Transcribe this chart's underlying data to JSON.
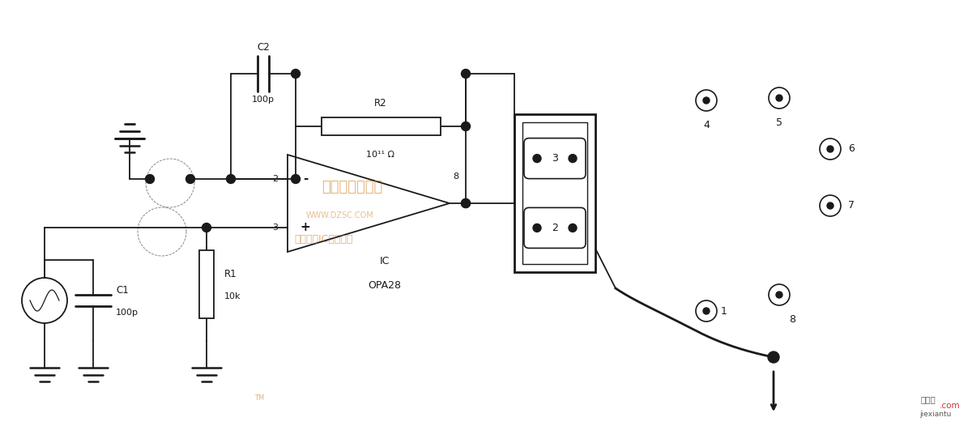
{
  "bg_color": "#ffffff",
  "line_color": "#1a1a1a",
  "line_width": 1.3,
  "fig_width": 12.0,
  "fig_height": 5.26,
  "components": {
    "C2_label": "C2",
    "C2_val": "100p",
    "C1_label": "C1",
    "C1_val": "100p",
    "R1_label": "R1",
    "R1_val": "10k",
    "R2_label": "R2",
    "R2_val": "10¹¹ Ω",
    "IC_label": "IC",
    "IC_model": "OPA28",
    "pin2": "2",
    "pin3": "3",
    "pin8": "8"
  }
}
